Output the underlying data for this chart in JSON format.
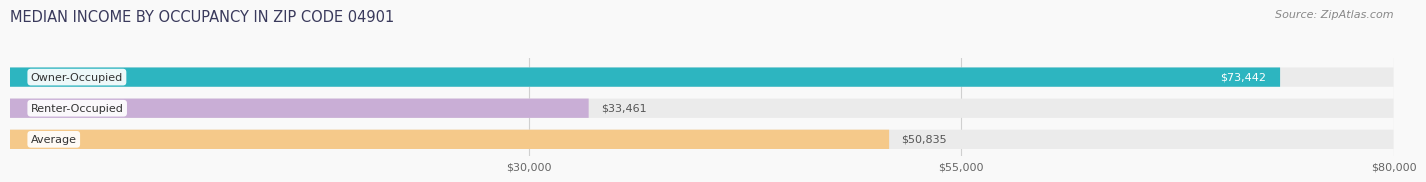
{
  "title": "MEDIAN INCOME BY OCCUPANCY IN ZIP CODE 04901",
  "source": "Source: ZipAtlas.com",
  "categories": [
    "Owner-Occupied",
    "Renter-Occupied",
    "Average"
  ],
  "values": [
    73442,
    33461,
    50835
  ],
  "labels": [
    "$73,442",
    "$33,461",
    "$50,835"
  ],
  "label_inside": [
    true,
    false,
    false
  ],
  "label_colors_inside": [
    "#ffffff",
    "#555555",
    "#555555"
  ],
  "bar_colors": [
    "#2db5c0",
    "#c9aed6",
    "#f5c98a"
  ],
  "bar_bg_color": "#ebebeb",
  "xmin": 0,
  "xmax": 80000,
  "xticks": [
    30000,
    55000,
    80000
  ],
  "xtick_labels": [
    "$30,000",
    "$55,000",
    "$80,000"
  ],
  "title_fontsize": 10.5,
  "source_fontsize": 8,
  "label_fontsize": 8,
  "cat_fontsize": 8,
  "bar_height": 0.62,
  "fig_width": 14.06,
  "fig_height": 1.96,
  "background_color": "#f9f9f9",
  "grid_color": "#d0d0d0",
  "title_color": "#3a3a5c",
  "source_color": "#888888"
}
